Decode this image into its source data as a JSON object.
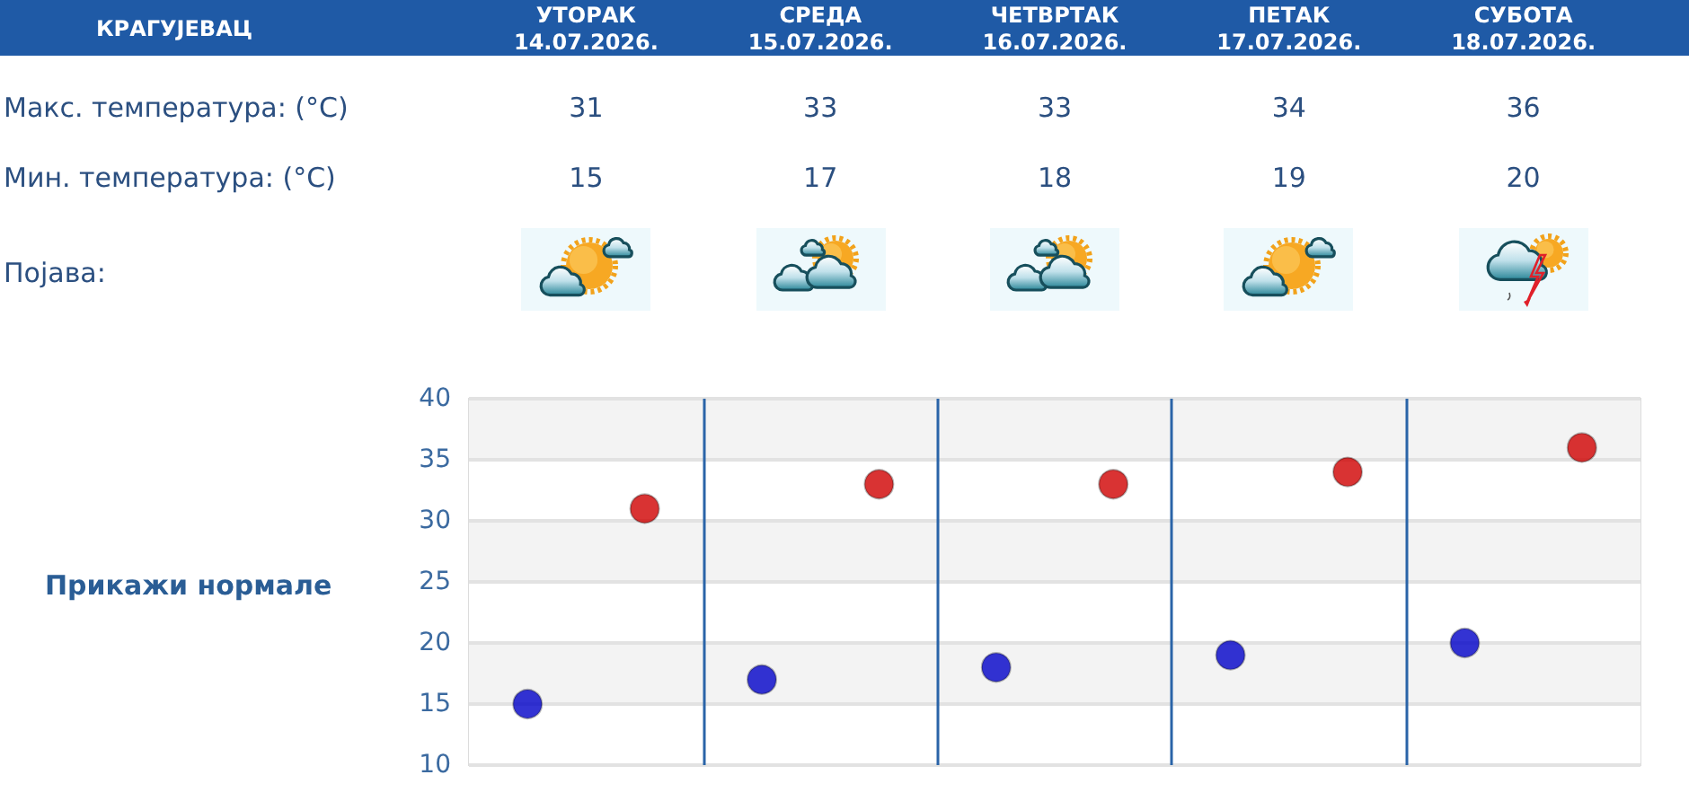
{
  "chart_data": {
    "type": "scatter",
    "title": "КРАГУЈЕВАЦ",
    "categories": [
      null,
      null,
      null,
      null,
      null
    ],
    "series": [
      {
        "color": "#d00000",
        "values": [
          31,
          33,
          33,
          34,
          36
        ]
      },
      {
        "color": "#0000c8",
        "values": [
          15,
          17,
          18,
          19,
          20
        ]
      }
    ],
    "ylim": [
      10,
      40
    ],
    "yticks": [
      10,
      15,
      20,
      25,
      30,
      35,
      40
    ],
    "grid": true,
    "marker": "circle",
    "data_labels": true,
    "tick_labels": "y",
    "annotations": [
      "УТОРАК\n14.07.2026.",
      "СРЕДА\n15.07.2026.",
      "ЧЕТВРТАК\n16.07.2026.",
      "ПЕТАК\n17.07.2026.",
      "СУБОТА\n18.07.2026.",
      "Макс. температура: (°C)",
      "Мин. температура: (°C)",
      "Појава:",
      "Прикажи нормале"
    ]
  }
}
